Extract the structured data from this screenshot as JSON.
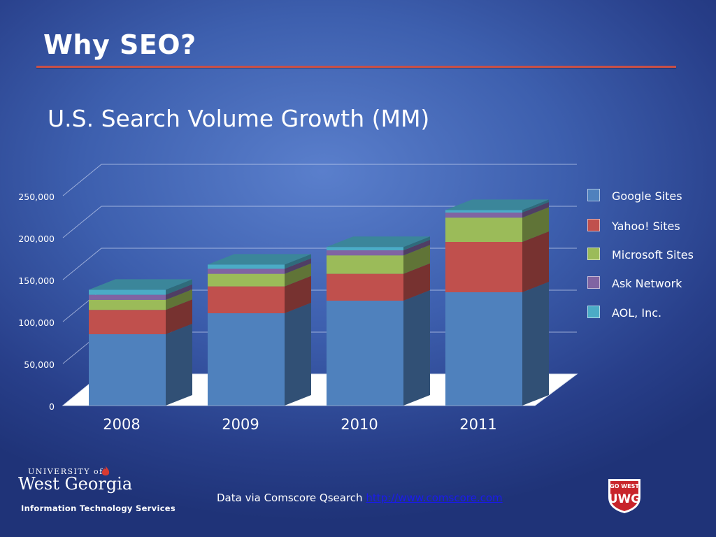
{
  "slide": {
    "title": "Why SEO?"
  },
  "chart_data": {
    "type": "bar",
    "stacked": true,
    "style": "3d",
    "title": "U.S. Search Volume Growth (MM)",
    "categories": [
      "2008",
      "2009",
      "2010",
      "2011"
    ],
    "yticks": [
      "0",
      "50,000",
      "100,000",
      "150,000",
      "200,000",
      "250,000"
    ],
    "ylim": [
      0,
      250000
    ],
    "grid": true,
    "legend_position": "right",
    "series": [
      {
        "name": "Google Sites",
        "color": "#4f81bd",
        "values": [
          85000,
          110000,
          125000,
          135000
        ]
      },
      {
        "name": "Yahoo! Sites",
        "color": "#c0504d",
        "values": [
          29000,
          32000,
          32000,
          60000
        ]
      },
      {
        "name": "Microsoft Sites",
        "color": "#9bbb59",
        "values": [
          12000,
          15000,
          22000,
          29000
        ]
      },
      {
        "name": "Ask Network",
        "color": "#8064a2",
        "values": [
          6000,
          6000,
          6000,
          6000
        ]
      },
      {
        "name": "AOL, Inc.",
        "color": "#4bacc6",
        "values": [
          6000,
          5000,
          4000,
          3000
        ]
      }
    ]
  },
  "footer": {
    "note": "Data via Comscore Qsearch",
    "link": "http://www.comscore.com"
  },
  "logo": {
    "university_small": "UNIVERSITY of",
    "university_name": "West Georgia",
    "department": "Information Technology Services"
  },
  "badge": {
    "top_text": "GO WEST",
    "letters": "UWG"
  }
}
